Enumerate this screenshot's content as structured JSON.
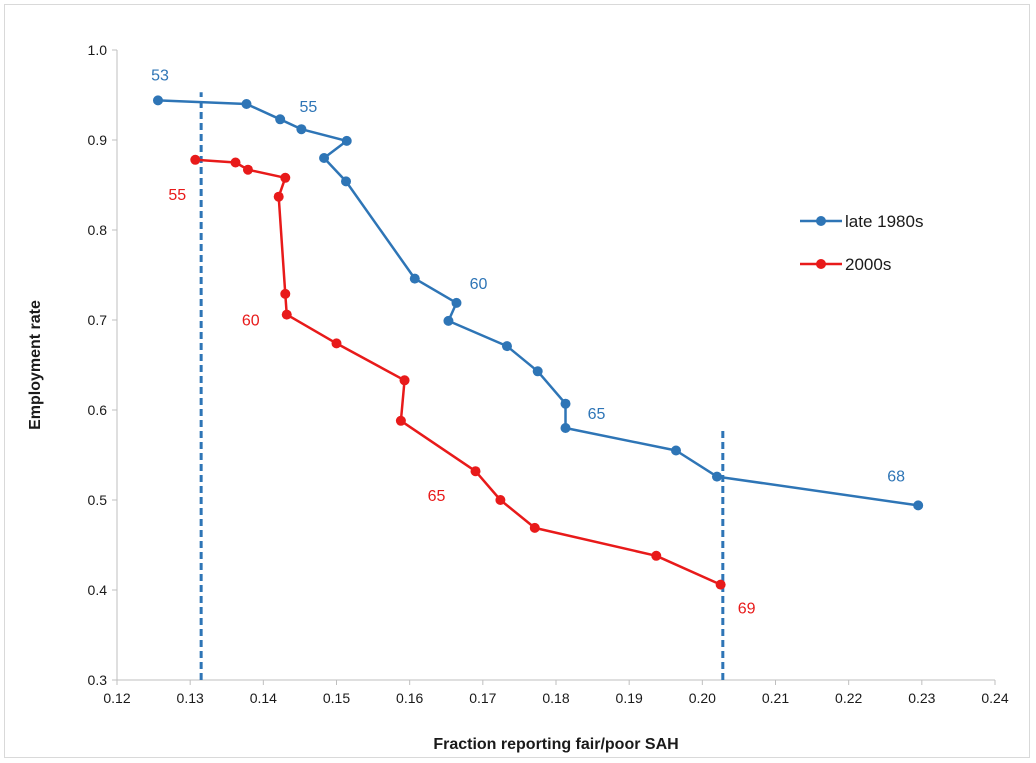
{
  "chart_data": {
    "type": "line",
    "title": "",
    "xlabel": "Fraction reporting fair/poor SAH",
    "ylabel": "Employment rate",
    "xlim": [
      0.12,
      0.24
    ],
    "ylim": [
      0.3,
      1.0
    ],
    "xticks": [
      "0.12",
      "0.13",
      "0.14",
      "0.15",
      "0.16",
      "0.17",
      "0.18",
      "0.19",
      "0.20",
      "0.21",
      "0.22",
      "0.23",
      "0.24"
    ],
    "yticks": [
      "0.3",
      "0.4",
      "0.5",
      "0.6",
      "0.7",
      "0.8",
      "0.9",
      "1.0"
    ],
    "grid": false,
    "legend_position": "right",
    "series": [
      {
        "name": "late 1980s",
        "color": "#2e75b6",
        "points": [
          {
            "x": 0.1256,
            "y": 0.944
          },
          {
            "x": 0.1377,
            "y": 0.94
          },
          {
            "x": 0.1423,
            "y": 0.923
          },
          {
            "x": 0.1452,
            "y": 0.912
          },
          {
            "x": 0.1514,
            "y": 0.899
          },
          {
            "x": 0.1483,
            "y": 0.88
          },
          {
            "x": 0.1513,
            "y": 0.854
          },
          {
            "x": 0.1607,
            "y": 0.746
          },
          {
            "x": 0.1664,
            "y": 0.719
          },
          {
            "x": 0.1653,
            "y": 0.699
          },
          {
            "x": 0.1733,
            "y": 0.671
          },
          {
            "x": 0.1775,
            "y": 0.643
          },
          {
            "x": 0.1813,
            "y": 0.607
          },
          {
            "x": 0.1813,
            "y": 0.58
          },
          {
            "x": 0.1964,
            "y": 0.555
          },
          {
            "x": 0.202,
            "y": 0.526
          },
          {
            "x": 0.2295,
            "y": 0.494
          }
        ]
      },
      {
        "name": "2000s",
        "color": "#e81a1a",
        "points": [
          {
            "x": 0.1307,
            "y": 0.878
          },
          {
            "x": 0.1362,
            "y": 0.875
          },
          {
            "x": 0.1379,
            "y": 0.867
          },
          {
            "x": 0.143,
            "y": 0.858
          },
          {
            "x": 0.1421,
            "y": 0.837
          },
          {
            "x": 0.143,
            "y": 0.729
          },
          {
            "x": 0.1432,
            "y": 0.706
          },
          {
            "x": 0.15,
            "y": 0.674
          },
          {
            "x": 0.1593,
            "y": 0.633
          },
          {
            "x": 0.1588,
            "y": 0.588
          },
          {
            "x": 0.169,
            "y": 0.532
          },
          {
            "x": 0.1724,
            "y": 0.5
          },
          {
            "x": 0.1771,
            "y": 0.469
          },
          {
            "x": 0.1937,
            "y": 0.438
          },
          {
            "x": 0.2025,
            "y": 0.406
          }
        ]
      }
    ],
    "reference_lines": [
      {
        "x": 0.1315,
        "y_from": 0.3,
        "y_to": 0.953,
        "color": "#2e75b6",
        "style": "dashed"
      },
      {
        "x": 0.2028,
        "y_from": 0.3,
        "y_to": 0.58,
        "color": "#2e75b6",
        "style": "dashed"
      }
    ],
    "annotations": [
      {
        "text": "53",
        "series": 0,
        "x": 0.1256,
        "y": 0.944,
        "color": "#2e75b6"
      },
      {
        "text": "55",
        "series": 0,
        "x": 0.1452,
        "y": 0.912,
        "color": "#2e75b6"
      },
      {
        "text": "60",
        "series": 0,
        "x": 0.1664,
        "y": 0.719,
        "color": "#2e75b6"
      },
      {
        "text": "65",
        "series": 0,
        "x": 0.1813,
        "y": 0.58,
        "color": "#2e75b6"
      },
      {
        "text": "68",
        "series": 0,
        "x": 0.2295,
        "y": 0.494,
        "color": "#2e75b6"
      },
      {
        "text": "55",
        "series": 1,
        "x": 0.1307,
        "y": 0.878,
        "color": "#e81a1a"
      },
      {
        "text": "60",
        "series": 1,
        "x": 0.1432,
        "y": 0.706,
        "color": "#e81a1a"
      },
      {
        "text": "65",
        "series": 1,
        "x": 0.169,
        "y": 0.532,
        "color": "#e81a1a"
      },
      {
        "text": "69",
        "series": 1,
        "x": 0.2025,
        "y": 0.406,
        "color": "#e81a1a"
      }
    ]
  }
}
